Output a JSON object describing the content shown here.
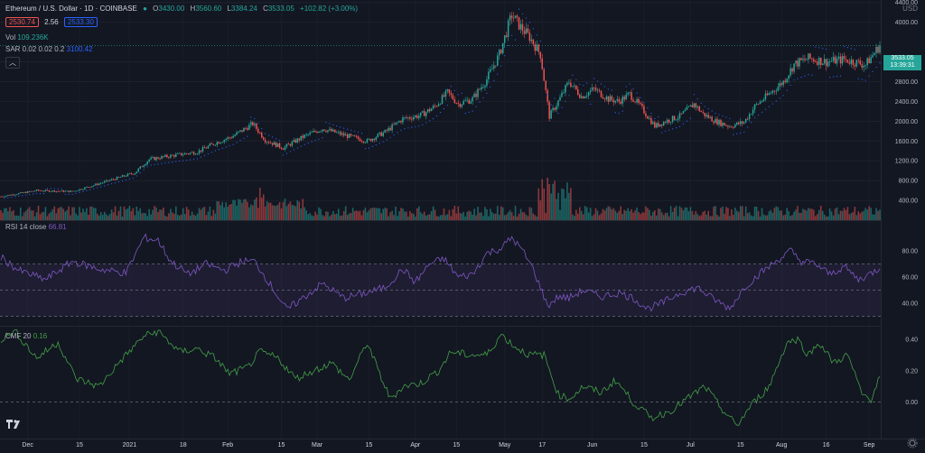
{
  "header": {
    "symbol": "Ethereum / U.S. Dollar · 1D · COINBASE",
    "o_label": "O",
    "o": "3430.00",
    "h_label": "H",
    "h": "3560.60",
    "l_label": "L",
    "l": "3384.24",
    "c_label": "C",
    "c": "3533.05",
    "change": "+102.82 (+3.00%)",
    "bid": "2530.74",
    "spread": "2.56",
    "ask": "2533.30"
  },
  "indicators": {
    "vol_label": "Vol",
    "vol_value": "109.236K",
    "sar_label": "SAR 0.02 0.02 0.2",
    "sar_value": "3100.42",
    "rsi_label": "RSI 14 close",
    "rsi_value": "66.81",
    "cmf_label": "CMF 20",
    "cmf_value": "0.16"
  },
  "price_axis": {
    "currency": "USD",
    "last_price": "3533.05",
    "countdown": "13:39:31"
  },
  "colors": {
    "up": "#26a69a",
    "down": "#ef5350",
    "sar": "#2962ff",
    "rsi": "#7e57c2",
    "cmf": "#43a047",
    "bg": "#131722"
  },
  "chart_data": [
    {
      "type": "candlestick",
      "title": "Ethereum / U.S. Dollar · 1D · COINBASE",
      "x_ticks": [
        "Dec",
        "15",
        "2021",
        "18",
        "Feb",
        "15",
        "Mar",
        "15",
        "Apr",
        "15",
        "May",
        "17",
        "Jun",
        "15",
        "Jul",
        "15",
        "Aug",
        "16",
        "Sep"
      ],
      "y_ticks": [
        400,
        800,
        1200,
        1600,
        2000,
        2400,
        2800,
        3200,
        4000,
        4400
      ],
      "ylim": [
        0,
        4450
      ],
      "close_keypoints": [
        [
          0,
          480
        ],
        [
          20,
          600
        ],
        [
          40,
          580
        ],
        [
          55,
          740
        ],
        [
          75,
          960
        ],
        [
          83,
          1230
        ],
        [
          95,
          1300
        ],
        [
          110,
          1380
        ],
        [
          120,
          1560
        ],
        [
          130,
          1700
        ],
        [
          141,
          1950
        ],
        [
          148,
          1620
        ],
        [
          158,
          1460
        ],
        [
          170,
          1700
        ],
        [
          180,
          1850
        ],
        [
          192,
          1720
        ],
        [
          205,
          1600
        ],
        [
          215,
          1780
        ],
        [
          225,
          2050
        ],
        [
          235,
          2120
        ],
        [
          243,
          2300
        ],
        [
          250,
          2580
        ],
        [
          256,
          2350
        ],
        [
          264,
          2450
        ],
        [
          272,
          2850
        ],
        [
          279,
          3350
        ],
        [
          286,
          4150
        ],
        [
          291,
          3900
        ],
        [
          296,
          3700
        ],
        [
          302,
          3350
        ],
        [
          307,
          2100
        ],
        [
          312,
          2400
        ],
        [
          318,
          2800
        ],
        [
          325,
          2500
        ],
        [
          332,
          2650
        ],
        [
          340,
          2450
        ],
        [
          346,
          2400
        ],
        [
          352,
          2550
        ],
        [
          359,
          2250
        ],
        [
          366,
          1900
        ],
        [
          372,
          2000
        ],
        [
          380,
          2100
        ],
        [
          388,
          2350
        ],
        [
          393,
          2150
        ],
        [
          400,
          2000
        ],
        [
          408,
          1900
        ],
        [
          416,
          1980
        ],
        [
          422,
          2300
        ],
        [
          430,
          2550
        ],
        [
          438,
          2800
        ],
        [
          444,
          3150
        ],
        [
          452,
          3270
        ],
        [
          462,
          3200
        ],
        [
          472,
          3250
        ],
        [
          484,
          3140
        ],
        [
          492,
          3533
        ]
      ],
      "last_close": 3533.05
    },
    {
      "type": "bar",
      "title": "Vol",
      "series": [
        {
          "name": "Volume",
          "last_value": "109.236K"
        }
      ]
    },
    {
      "type": "line",
      "title": "RSI 14 close",
      "y_ticks": [
        40,
        60,
        80
      ],
      "bands": [
        30,
        50,
        70
      ],
      "ylim": [
        25,
        95
      ],
      "keypoints": [
        [
          0,
          75
        ],
        [
          10,
          65
        ],
        [
          25,
          58
        ],
        [
          40,
          72
        ],
        [
          55,
          66
        ],
        [
          70,
          63
        ],
        [
          80,
          90
        ],
        [
          88,
          88
        ],
        [
          95,
          72
        ],
        [
          105,
          62
        ],
        [
          115,
          70
        ],
        [
          125,
          65
        ],
        [
          135,
          72
        ],
        [
          142,
          72
        ],
        [
          150,
          56
        ],
        [
          160,
          35
        ],
        [
          170,
          45
        ],
        [
          180,
          55
        ],
        [
          192,
          44
        ],
        [
          205,
          48
        ],
        [
          215,
          52
        ],
        [
          225,
          66
        ],
        [
          232,
          56
        ],
        [
          240,
          70
        ],
        [
          248,
          74
        ],
        [
          256,
          60
        ],
        [
          264,
          62
        ],
        [
          272,
          78
        ],
        [
          280,
          82
        ],
        [
          286,
          90
        ],
        [
          292,
          80
        ],
        [
          298,
          66
        ],
        [
          306,
          38
        ],
        [
          312,
          45
        ],
        [
          318,
          44
        ],
        [
          326,
          50
        ],
        [
          336,
          45
        ],
        [
          346,
          48
        ],
        [
          354,
          44
        ],
        [
          362,
          36
        ],
        [
          370,
          40
        ],
        [
          380,
          48
        ],
        [
          390,
          52
        ],
        [
          398,
          44
        ],
        [
          408,
          36
        ],
        [
          416,
          52
        ],
        [
          426,
          64
        ],
        [
          436,
          74
        ],
        [
          442,
          80
        ],
        [
          448,
          72
        ],
        [
          456,
          70
        ],
        [
          464,
          62
        ],
        [
          472,
          68
        ],
        [
          480,
          58
        ],
        [
          486,
          62
        ],
        [
          492,
          67
        ]
      ]
    },
    {
      "type": "line",
      "title": "CMF 20",
      "y_ticks": [
        0.0,
        0.2,
        0.4
      ],
      "ylim": [
        -0.22,
        0.48
      ],
      "keypoints": [
        [
          0,
          0.4
        ],
        [
          8,
          0.45
        ],
        [
          20,
          0.28
        ],
        [
          32,
          0.38
        ],
        [
          42,
          0.15
        ],
        [
          55,
          0.1
        ],
        [
          66,
          0.25
        ],
        [
          80,
          0.42
        ],
        [
          88,
          0.45
        ],
        [
          100,
          0.32
        ],
        [
          110,
          0.34
        ],
        [
          120,
          0.28
        ],
        [
          128,
          0.18
        ],
        [
          138,
          0.22
        ],
        [
          145,
          0.32
        ],
        [
          155,
          0.28
        ],
        [
          165,
          0.15
        ],
        [
          175,
          0.2
        ],
        [
          185,
          0.25
        ],
        [
          195,
          0.14
        ],
        [
          205,
          0.38
        ],
        [
          212,
          0.18
        ],
        [
          218,
          0.02
        ],
        [
          225,
          0.1
        ],
        [
          235,
          0.12
        ],
        [
          245,
          0.2
        ],
        [
          252,
          0.32
        ],
        [
          262,
          0.3
        ],
        [
          272,
          0.3
        ],
        [
          280,
          0.43
        ],
        [
          288,
          0.35
        ],
        [
          296,
          0.3
        ],
        [
          304,
          0.3
        ],
        [
          312,
          0.05
        ],
        [
          318,
          0.02
        ],
        [
          326,
          0.1
        ],
        [
          336,
          0.06
        ],
        [
          344,
          0.14
        ],
        [
          354,
          0.0
        ],
        [
          364,
          -0.1
        ],
        [
          374,
          -0.06
        ],
        [
          384,
          0.02
        ],
        [
          394,
          0.1
        ],
        [
          404,
          -0.05
        ],
        [
          412,
          -0.15
        ],
        [
          420,
          -0.02
        ],
        [
          430,
          0.1
        ],
        [
          440,
          0.38
        ],
        [
          446,
          0.4
        ],
        [
          452,
          0.3
        ],
        [
          458,
          0.38
        ],
        [
          466,
          0.25
        ],
        [
          474,
          0.3
        ],
        [
          482,
          0.05
        ],
        [
          487,
          0.02
        ],
        [
          492,
          0.16
        ]
      ]
    }
  ]
}
